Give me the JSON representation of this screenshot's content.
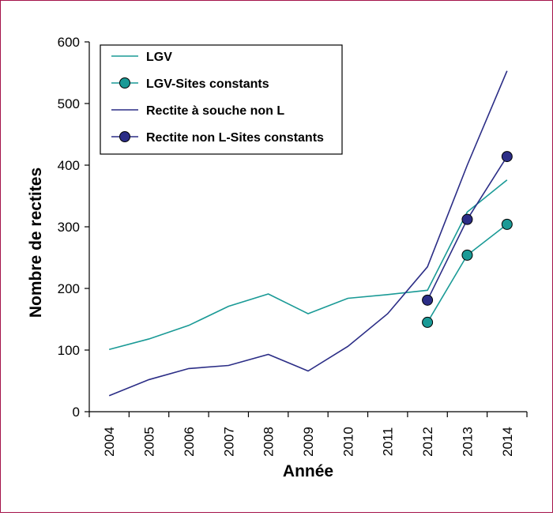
{
  "chart_data": {
    "type": "line",
    "xlabel": "Année",
    "ylabel": "Nombre de rectites",
    "ylim": [
      0,
      600
    ],
    "yticks": [
      0,
      100,
      200,
      300,
      400,
      500,
      600
    ],
    "categories": [
      "2004",
      "2005",
      "2006",
      "2007",
      "2008",
      "2009",
      "2010",
      "2011",
      "2012",
      "2013",
      "2014"
    ],
    "legend_position": "top-left",
    "grid": false,
    "series": [
      {
        "name": "LGV",
        "color": "#1a9a96",
        "markers": false,
        "x": [
          "2004",
          "2005",
          "2006",
          "2007",
          "2008",
          "2009",
          "2010",
          "2011",
          "2012",
          "2013",
          "2014"
        ],
        "values": [
          101,
          118,
          140,
          171,
          191,
          159,
          184,
          190,
          197,
          324,
          376
        ]
      },
      {
        "name": "LGV-Sites constants",
        "color": "#1a9a96",
        "markers": true,
        "x": [
          "2012",
          "2013",
          "2014"
        ],
        "values": [
          145,
          254,
          304
        ]
      },
      {
        "name": "Rectite à souche non L",
        "color": "#2b2d86",
        "markers": false,
        "x": [
          "2004",
          "2005",
          "2006",
          "2007",
          "2008",
          "2009",
          "2010",
          "2011",
          "2012",
          "2013",
          "2014"
        ],
        "values": [
          26,
          52,
          70,
          75,
          93,
          66,
          106,
          159,
          235,
          400,
          553
        ]
      },
      {
        "name": "Rectite non L-Sites constants",
        "color": "#2b2d86",
        "markers": true,
        "x": [
          "2012",
          "2013",
          "2014"
        ],
        "values": [
          181,
          312,
          414
        ]
      }
    ]
  }
}
